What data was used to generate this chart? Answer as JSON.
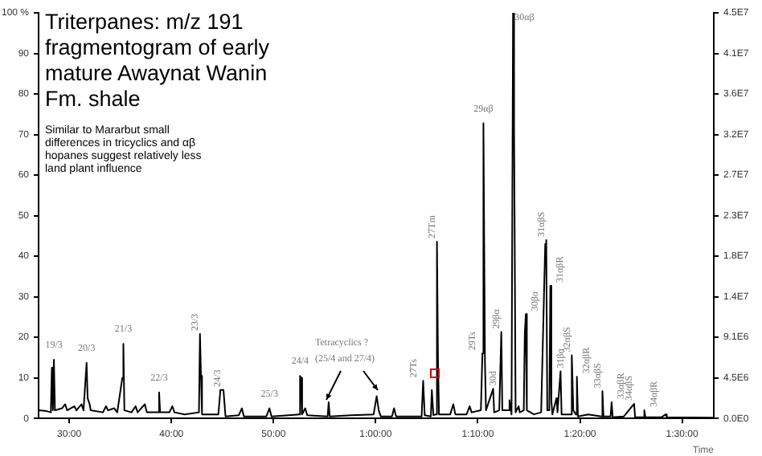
{
  "chart_data": {
    "type": "line",
    "title": "Triterpanes: m/z 191 fragmentogram of early mature Awaynat Wanin Fm. shale",
    "subtitle": "Similar to Mararbut small differences in tricyclics and αβ hopanes suggest relatively less land plant influence",
    "xlabel": "Time",
    "xlim": [
      27,
      93.1
    ],
    "xticks": [
      {
        "value": 30,
        "label": "30:00"
      },
      {
        "value": 40,
        "label": "40:00"
      },
      {
        "value": 50,
        "label": "50:00"
      },
      {
        "value": 60,
        "label": "1:00:00"
      },
      {
        "value": 70,
        "label": "1:10:00"
      },
      {
        "value": 80,
        "label": "1:20:00"
      },
      {
        "value": 90,
        "label": "1:30:00"
      }
    ],
    "ylim": [
      0,
      100
    ],
    "yticks": [
      0,
      10,
      20,
      30,
      40,
      50,
      60,
      70,
      80,
      90,
      {
        "value": 100,
        "label": "100 %"
      }
    ],
    "y2lim": [
      0,
      45400000
    ],
    "y2ticks": [
      {
        "value": 0,
        "label": "0.0E0"
      },
      {
        "value": 4540000,
        "label": "4.5E6"
      },
      {
        "value": 9080000,
        "label": "9.1E6"
      },
      {
        "value": 13620000,
        "label": "1.4E7"
      },
      {
        "value": 18160000,
        "label": "1.8E7"
      },
      {
        "value": 22700000,
        "label": "2.3E7"
      },
      {
        "value": 27240000,
        "label": "2.7E7"
      },
      {
        "value": 31780000,
        "label": "3.2E7"
      },
      {
        "value": 36320000,
        "label": "3.6E7"
      },
      {
        "value": 40860000,
        "label": "4.1E7"
      },
      {
        "value": 45400000,
        "label": "4.5E7"
      }
    ],
    "grid": false,
    "legend": false,
    "marker": "none",
    "line_style": "solid",
    "series": [
      {
        "color": "#000000",
        "x": [
          27.0,
          27.8,
          28.2,
          28.3,
          28.4,
          28.5,
          28.6,
          29.3,
          29.6,
          29.8,
          30.5,
          30.7,
          31.2,
          31.4,
          31.7,
          31.8,
          32.0,
          32.1,
          33.3,
          33.6,
          33.8,
          34.4,
          34.7,
          35.2,
          35.3,
          35.4,
          36.1,
          36.5,
          36.7,
          37.4,
          37.6,
          38.7,
          38.8,
          38.9,
          39.8,
          40.1,
          40.3,
          41.3,
          42.7,
          42.8,
          42.9,
          43.0,
          44.6,
          44.8,
          45.1,
          45.3,
          46.6,
          46.9,
          47.1,
          49.3,
          49.6,
          49.8,
          51.5,
          52.5,
          52.6,
          52.7,
          52.8,
          53.1,
          53.3,
          55.3,
          55.4,
          55.5,
          57.6,
          59.8,
          60.1,
          60.3,
          60.5,
          61.6,
          61.8,
          62.0,
          62.9,
          64.5,
          64.65,
          64.8,
          65.4,
          65.5,
          65.65,
          65.9,
          66.0,
          66.1,
          66.2,
          67.3,
          67.6,
          67.8,
          68.9,
          69.2,
          69.4,
          70.3,
          70.45,
          70.55,
          70.7,
          70.8,
          71.5,
          71.6,
          72.1,
          72.3,
          72.4,
          73.0,
          73.1,
          73.3,
          73.45,
          73.55,
          73.7,
          74.0,
          74.1,
          74.5,
          74.6,
          74.7,
          74.8,
          75.5,
          76.2,
          76.6,
          76.7,
          76.8,
          77.0,
          77.1,
          77.2,
          77.3,
          77.7,
          77.8,
          78.1,
          78.2,
          79.1,
          79.2,
          79.35,
          79.6,
          79.7,
          79.8,
          80.8,
          82.1,
          82.2,
          82.3,
          83.0,
          83.1,
          83.2,
          84.3,
          85.3,
          85.4,
          86.2,
          86.3,
          86.4,
          88.0,
          88.4,
          88.5,
          93.0
        ],
        "values": [
          2,
          1.8,
          1.5,
          12.5,
          2,
          14.5,
          2,
          2.5,
          3.5,
          2,
          3,
          2,
          3.5,
          2,
          13.7,
          5,
          3.5,
          2,
          1.5,
          3,
          2,
          2.5,
          1.5,
          10,
          18.4,
          2,
          1.5,
          3,
          1.5,
          3.5,
          1.5,
          1.5,
          6.4,
          1.5,
          1.5,
          3,
          1.5,
          1,
          1.5,
          20.8,
          10.5,
          1,
          1,
          7,
          7,
          0.5,
          0.8,
          2.5,
          0.5,
          0.5,
          2.5,
          0.5,
          0.8,
          1,
          10.5,
          10,
          1,
          2.5,
          0.8,
          0.5,
          4,
          0.5,
          0.8,
          1,
          5.5,
          2,
          0.5,
          0.5,
          2.5,
          0.5,
          0.5,
          0.5,
          9.3,
          0.8,
          0.5,
          7,
          0.8,
          1,
          43.6,
          15,
          1,
          1,
          3.5,
          1,
          1,
          3,
          1.5,
          2,
          16,
          72.8,
          14,
          2,
          7.3,
          1.5,
          2,
          21.3,
          2,
          2,
          4.5,
          1,
          100,
          71.7,
          1.5,
          3,
          1.5,
          2,
          21,
          25.7,
          2,
          1,
          1.5,
          43,
          44,
          2,
          2,
          32.7,
          4.5,
          1,
          5,
          1.5,
          11.6,
          1,
          1,
          15.6,
          2,
          1,
          10.3,
          0.5,
          1,
          0.5,
          6.7,
          0.5,
          0.5,
          4,
          0.3,
          0.5,
          3.6,
          0.3,
          0.3,
          2,
          0.3,
          0.3,
          1,
          0.3,
          0.2
        ]
      }
    ],
    "annotations": [
      {
        "text": "19/3",
        "x": 28.5,
        "y": 14.5
      },
      {
        "text": "20/3",
        "x": 31.7,
        "y": 13.7
      },
      {
        "text": "21/3",
        "x": 35.3,
        "y": 18.4
      },
      {
        "text": "22/3",
        "x": 38.8,
        "y": 6.4
      },
      {
        "text": "23/3",
        "x": 42.8,
        "y": 20.8
      },
      {
        "text": "24/3",
        "x": 45.0,
        "y": 7
      },
      {
        "text": "25/3",
        "x": 49.6,
        "y": 2.5
      },
      {
        "text": "24/4",
        "x": 52.6,
        "y": 10.5
      },
      "Tetracyclics ?",
      "(25/4 and 27/4)",
      {
        "text": "27Ts",
        "x": 64.65,
        "y": 9.3
      },
      {
        "text": "27Tm",
        "x": 66.0,
        "y": 43.6
      },
      {
        "text": "29Ts",
        "x": 70.45,
        "y": 16
      },
      {
        "text": "29αβ",
        "x": 70.55,
        "y": 72.8
      },
      {
        "text": "30d",
        "x": 71.5,
        "y": 7.3
      },
      {
        "text": "29βα",
        "x": 72.3,
        "y": 21.3
      },
      {
        "text": "30αβ",
        "x": 73.45,
        "y": 100
      },
      {
        "text": "30βα",
        "x": 74.7,
        "y": 25.7
      },
      {
        "text": "31αβS",
        "x": 76.7,
        "y": 44
      },
      {
        "text": "31αβR",
        "x": 77.1,
        "y": 32.7
      },
      {
        "text": "31βα",
        "x": 78.1,
        "y": 11.6
      },
      {
        "text": "32αβS",
        "x": 79.2,
        "y": 15.6
      },
      {
        "text": "32αβR",
        "x": 79.7,
        "y": 10.3
      },
      {
        "text": "33αβS",
        "x": 82.2,
        "y": 6.7
      },
      {
        "text": "33αβR",
        "x": 83.1,
        "y": 4
      },
      {
        "text": "34αβS",
        "x": 85.3,
        "y": 3.6
      },
      {
        "text": "34αβR",
        "x": 86.3,
        "y": 2
      }
    ]
  }
}
